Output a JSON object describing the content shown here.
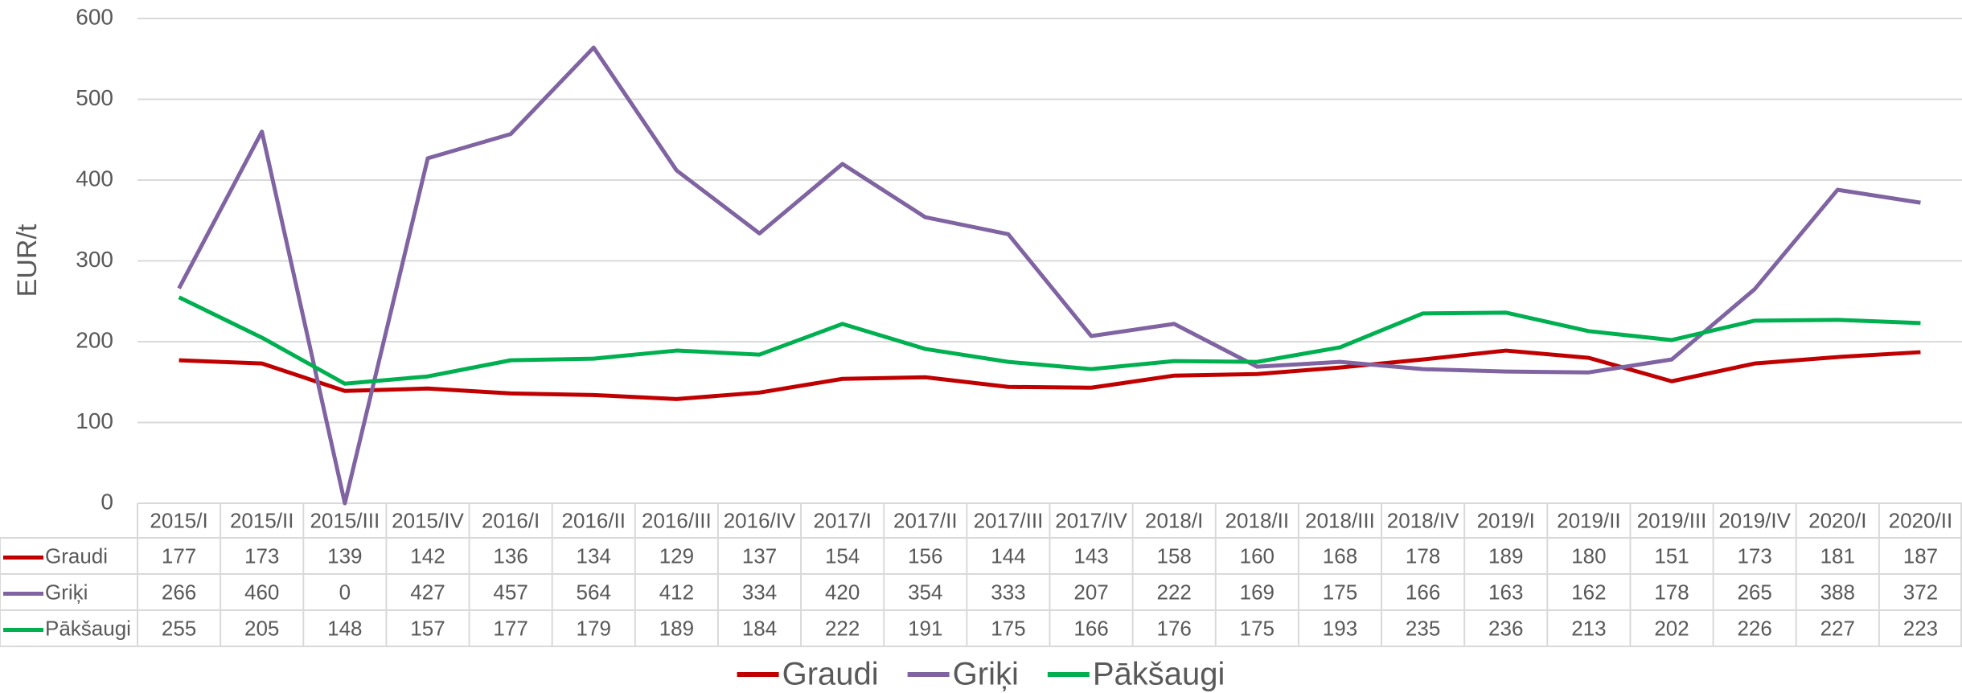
{
  "chart_data": {
    "type": "line",
    "y_label": "EUR/t",
    "categories": [
      "2015/I",
      "2015/II",
      "2015/III",
      "2015/IV",
      "2016/I",
      "2016/II",
      "2016/III",
      "2016/IV",
      "2017/I",
      "2017/II",
      "2017/III",
      "2017/IV",
      "2018/I",
      "2018/II",
      "2018/III",
      "2018/IV",
      "2019/I",
      "2019/II",
      "2019/III",
      "2019/IV",
      "2020/I",
      "2020/II"
    ],
    "series": [
      {
        "name": "Graudi",
        "color": "#c00000",
        "values": [
          177,
          173,
          139,
          142,
          136,
          134,
          129,
          137,
          154,
          156,
          144,
          143,
          158,
          160,
          168,
          178,
          189,
          180,
          151,
          173,
          181,
          187
        ]
      },
      {
        "name": "Griķi",
        "color": "#8064a2",
        "values": [
          266,
          460,
          0,
          427,
          457,
          564,
          412,
          334,
          420,
          354,
          333,
          207,
          222,
          169,
          175,
          166,
          163,
          162,
          178,
          265,
          388,
          372
        ]
      },
      {
        "name": "Pākšaugi",
        "color": "#00b050",
        "values": [
          255,
          205,
          148,
          157,
          177,
          179,
          189,
          184,
          222,
          191,
          175,
          166,
          176,
          175,
          193,
          235,
          236,
          213,
          202,
          226,
          227,
          223
        ]
      }
    ],
    "ylim": [
      0,
      600
    ],
    "yticks": [
      0,
      100,
      200,
      300,
      400,
      500,
      600
    ],
    "grid": true,
    "legend": "bottom",
    "data_table": true
  }
}
